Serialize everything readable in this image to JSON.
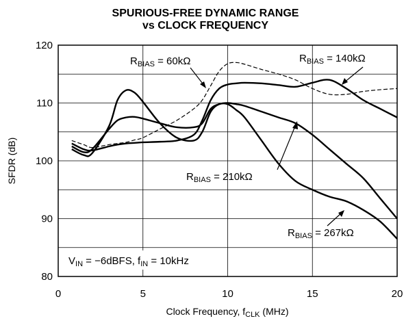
{
  "chart_data": {
    "type": "line",
    "title": [
      "SPURIOUS-FREE DYNAMIC RANGE",
      "vs CLOCK FREQUENCY"
    ],
    "xlabel": [
      "Clock Frequency, f",
      "CLK",
      " (MHz)"
    ],
    "ylabel": "SFDR (dB)",
    "xlim": [
      0,
      20
    ],
    "xticks": [
      0,
      5,
      10,
      15,
      20
    ],
    "ylim": [
      80,
      120
    ],
    "yticks": [
      80,
      90,
      100,
      110,
      120
    ],
    "ygrid_extra": [
      85,
      95,
      105,
      115
    ],
    "grid": true,
    "x": [
      0.8,
      1.5,
      2,
      3,
      3.5,
      4,
      4.5,
      5,
      6,
      7,
      8,
      8.5,
      9,
      9.5,
      10,
      10.5,
      11,
      12,
      13,
      14,
      15,
      16,
      17,
      18,
      19,
      20
    ],
    "series": [
      {
        "name": [
          "R",
          "BIAS",
          " = 60kΩ"
        ],
        "color": "#000000",
        "dashed": true,
        "values": [
          103.5,
          102.8,
          102.3,
          102.8,
          103,
          103.2,
          103.6,
          104,
          105.5,
          107,
          109,
          110.5,
          113,
          115.5,
          116.8,
          117,
          116.7,
          115.8,
          115,
          114,
          112.5,
          111.5,
          111.5,
          112,
          112.3,
          112.5
        ]
      },
      {
        "name": [
          "R",
          "BIAS",
          " = 140kΩ"
        ],
        "color": "#000000",
        "dashed": false,
        "values": [
          103,
          102,
          101.8,
          102.5,
          102.8,
          103,
          103.1,
          103.2,
          103.3,
          103.5,
          104.5,
          107,
          110.5,
          112.5,
          113.2,
          113.4,
          113.5,
          113.4,
          113.1,
          112.8,
          113.5,
          114,
          112.5,
          110.5,
          109,
          107.5
        ]
      },
      {
        "name": [
          "R",
          "BIAS",
          " = 210kΩ"
        ],
        "color": "#000000",
        "dashed": false,
        "values": [
          102.5,
          101.5,
          102,
          105.5,
          107,
          107.5,
          107.6,
          107.3,
          106.5,
          105.8,
          105.8,
          106.5,
          109,
          109.8,
          110,
          109.8,
          109.5,
          108.5,
          107.5,
          106.5,
          104.5,
          102,
          99.5,
          97,
          93.5,
          90
        ]
      },
      {
        "name": [
          "R",
          "BIAS",
          " = 267kΩ"
        ],
        "color": "#000000",
        "dashed": false,
        "values": [
          102,
          101,
          101.3,
          106,
          110.5,
          112.2,
          111.8,
          110.2,
          106.5,
          104,
          103.5,
          105,
          108.5,
          109.8,
          109.8,
          108.8,
          107.5,
          103.5,
          99.5,
          96.5,
          95,
          93.8,
          93,
          91.5,
          89.5,
          86.5
        ]
      }
    ],
    "annotation": [
      "V",
      "IN",
      " = −6dBFS, f",
      "IN",
      " = 10kHz"
    ]
  }
}
